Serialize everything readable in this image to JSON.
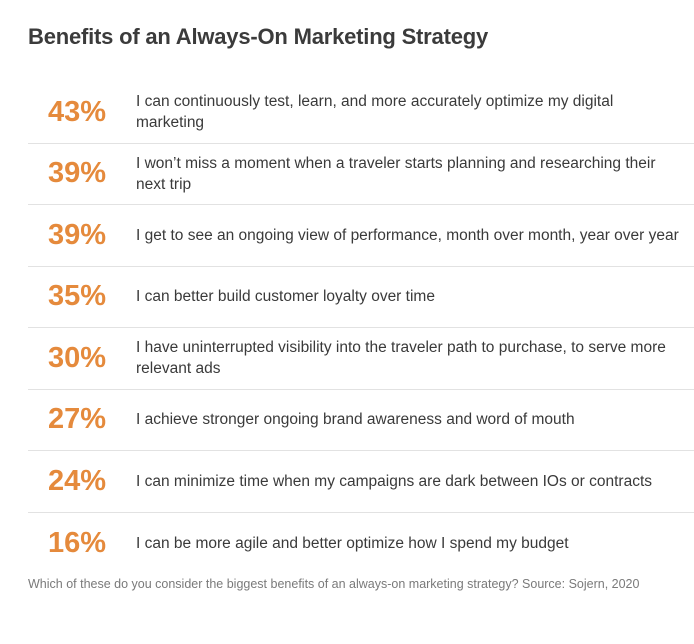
{
  "title": "Benefits of an Always-On Marketing Strategy",
  "caption": "Which of these do you consider the biggest benefits of an always-on marketing strategy? Source: Sojern, 2020",
  "colors": {
    "accent": "#e58a3c",
    "text": "#3a3a3a",
    "divider": "#e2e2e2"
  },
  "chart_data": {
    "type": "table",
    "title": "Benefits of an Always-On Marketing Strategy",
    "rows": [
      {
        "percent": "43%",
        "value": 43,
        "label": "I can continuously test, learn, and more accurately optimize my digital marketing"
      },
      {
        "percent": "39%",
        "value": 39,
        "label": "I won’t miss a moment when a traveler starts planning and researching their next trip"
      },
      {
        "percent": "39%",
        "value": 39,
        "label": "I get to see an ongoing view of performance, month over month, year over year"
      },
      {
        "percent": "35%",
        "value": 35,
        "label": "I can better build customer loyalty over time"
      },
      {
        "percent": "30%",
        "value": 30,
        "label": "I have uninterrupted visibility into the traveler path to purchase, to serve more relevant ads"
      },
      {
        "percent": "27%",
        "value": 27,
        "label": "I achieve stronger ongoing brand awareness and word of mouth"
      },
      {
        "percent": "24%",
        "value": 24,
        "label": "I can minimize time when my campaigns are dark between IOs or contracts"
      },
      {
        "percent": "16%",
        "value": 16,
        "label": "I can be more agile and better optimize how I spend my budget"
      }
    ]
  }
}
